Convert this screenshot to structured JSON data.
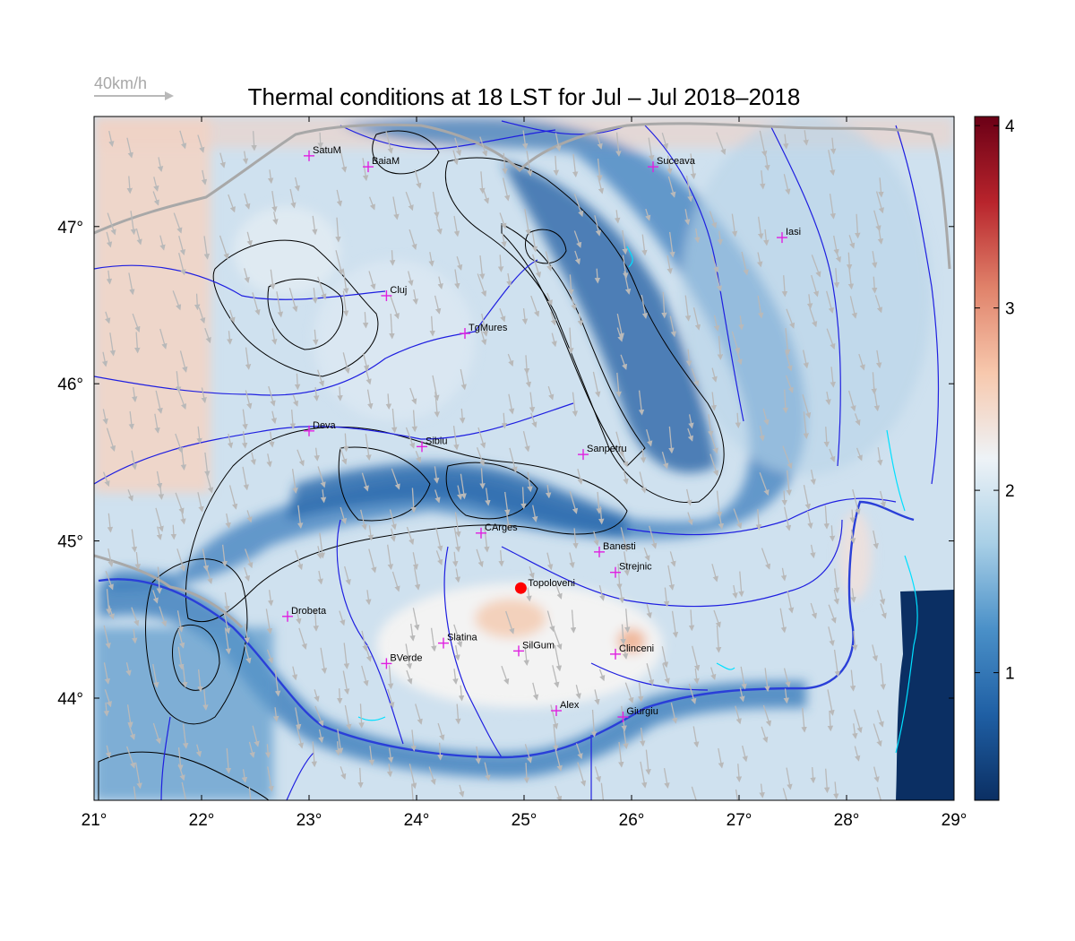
{
  "title": "Thermal conditions at 18 LST for Jul – Jul  2018–2018",
  "wind_scale_label": "40km/h",
  "lon_ticks": [
    "21°",
    "22°",
    "23°",
    "24°",
    "25°",
    "26°",
    "27°",
    "28°",
    "29°"
  ],
  "lat_ticks": [
    "44°",
    "45°",
    "46°",
    "47°"
  ],
  "colorbar_ticks": [
    "1",
    "2",
    "3",
    "4"
  ],
  "colorbar_range": [
    0.3,
    4.05
  ],
  "map_extent": {
    "lon": [
      21,
      29
    ],
    "lat": [
      43.35,
      47.7
    ]
  },
  "colors": {
    "colormap": [
      "#0b2f63",
      "#1f5fa4",
      "#4a90c8",
      "#a8cfe6",
      "#eef3f7",
      "#f7c8ad",
      "#e0826a",
      "#b8242c",
      "#6b0016"
    ],
    "rivers": "#1f1fe0",
    "border": "#a8a8a8",
    "contours": "#000000",
    "city_marker": "#e020e0",
    "highlight_site": "#ff0000",
    "wind_arrows": "#b9b9b9"
  },
  "cities": [
    {
      "name": "SatuM",
      "lon": 23.0,
      "lat": 47.45
    },
    {
      "name": "BaiaM",
      "lon": 23.55,
      "lat": 47.38
    },
    {
      "name": "Suceava",
      "lon": 26.2,
      "lat": 47.38
    },
    {
      "name": "Iasi",
      "lon": 27.4,
      "lat": 46.93
    },
    {
      "name": "Cluj",
      "lon": 23.72,
      "lat": 46.56
    },
    {
      "name": "TgMures",
      "lon": 24.45,
      "lat": 46.32
    },
    {
      "name": "Deva",
      "lon": 23.0,
      "lat": 45.7
    },
    {
      "name": "Sibiu",
      "lon": 24.05,
      "lat": 45.6
    },
    {
      "name": "Sanpetru",
      "lon": 25.55,
      "lat": 45.55
    },
    {
      "name": "CArges",
      "lon": 24.6,
      "lat": 45.05
    },
    {
      "name": "Banesti",
      "lon": 25.7,
      "lat": 44.93
    },
    {
      "name": "Strejnic",
      "lon": 25.85,
      "lat": 44.8
    },
    {
      "name": "Drobeta",
      "lon": 22.8,
      "lat": 44.52
    },
    {
      "name": "Slatina",
      "lon": 24.25,
      "lat": 44.35
    },
    {
      "name": "SilGum",
      "lon": 24.95,
      "lat": 44.3
    },
    {
      "name": "Clinceni",
      "lon": 25.85,
      "lat": 44.28
    },
    {
      "name": "BVerde",
      "lon": 23.72,
      "lat": 44.22
    },
    {
      "name": "Alex",
      "lon": 25.3,
      "lat": 43.92
    },
    {
      "name": "Giurgiu",
      "lon": 25.92,
      "lat": 43.88
    }
  ],
  "highlight_site": {
    "name": "Topoloveni",
    "lon": 24.97,
    "lat": 44.7
  }
}
